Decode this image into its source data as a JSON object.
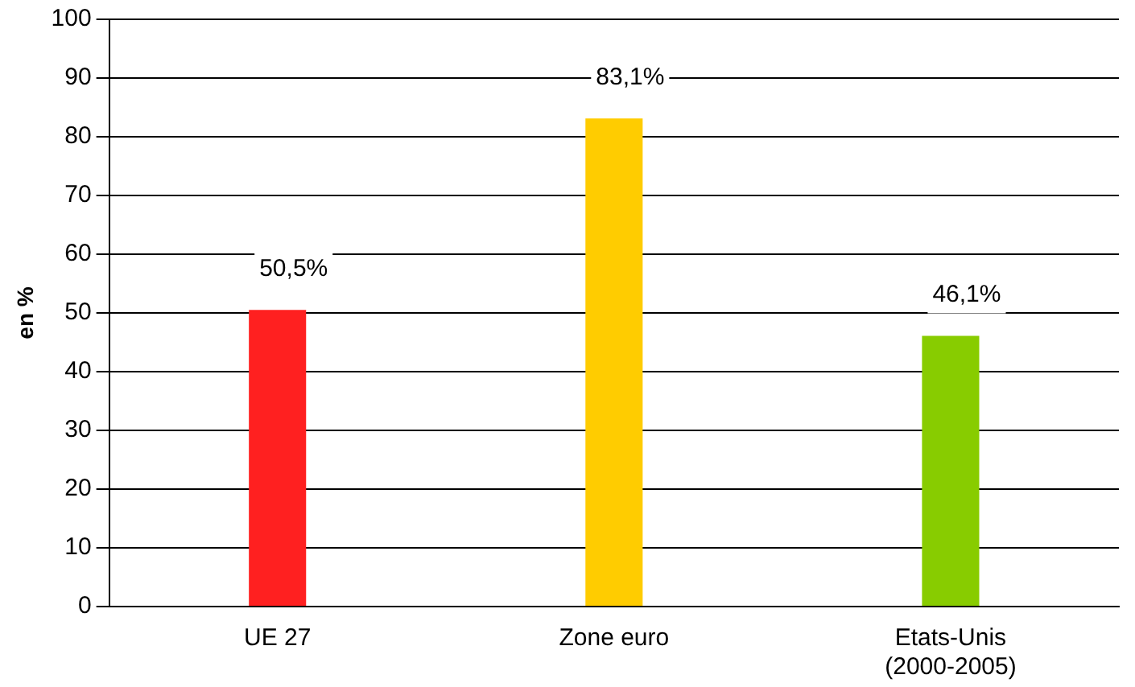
{
  "chart_data": {
    "type": "bar",
    "ylabel": "en %",
    "categories": [
      "UE 27",
      "Zone euro",
      "Etats-Unis (2000-2005)"
    ],
    "values": [
      50.5,
      83.1,
      46.1
    ],
    "colors": [
      "#ff2020",
      "#ffcc00",
      "#88cc00"
    ],
    "value_labels": [
      "50,5%",
      "83,1%",
      "46,1%"
    ],
    "ylim": [
      0,
      100
    ],
    "yticks": [
      0,
      10,
      20,
      30,
      40,
      50,
      60,
      70,
      80,
      90,
      100
    ],
    "grid": "y",
    "legend": false
  }
}
